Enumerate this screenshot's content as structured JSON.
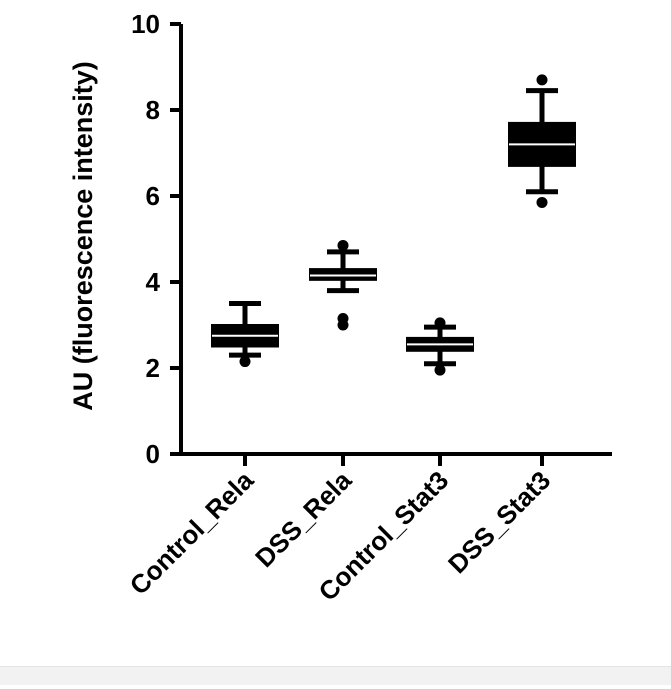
{
  "chart_data": {
    "type": "box",
    "title": "",
    "xlabel": "",
    "ylabel": "AU (fluorescence intensity)",
    "ylim": [
      0,
      10
    ],
    "yticks": [
      "0",
      "2",
      "4",
      "6",
      "8",
      "10"
    ],
    "categories": [
      "Control_Rela",
      "DSS_Rela",
      "Control_Stat3",
      "DSS_Stat3"
    ],
    "boxes": [
      {
        "whisker_low": 2.3,
        "q1": 2.5,
        "median": 2.75,
        "q3": 3.0,
        "whisker_high": 3.5,
        "outliers": [
          2.15
        ]
      },
      {
        "whisker_low": 3.8,
        "q1": 4.05,
        "median": 4.15,
        "q3": 4.3,
        "whisker_high": 4.7,
        "outliers": [
          4.85,
          3.15,
          3.0
        ]
      },
      {
        "whisker_low": 2.1,
        "q1": 2.4,
        "median": 2.55,
        "q3": 2.7,
        "whisker_high": 2.95,
        "outliers": [
          3.05,
          1.95
        ]
      },
      {
        "whisker_low": 6.1,
        "q1": 6.7,
        "median": 7.2,
        "q3": 7.7,
        "whisker_high": 8.45,
        "outliers": [
          8.7,
          5.85
        ]
      }
    ],
    "grid": false,
    "legend": "none",
    "color": "#000000"
  }
}
